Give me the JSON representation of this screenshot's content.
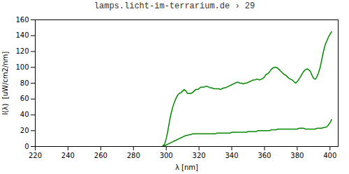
{
  "chart_data": {
    "type": "line",
    "title": "lamps.licht-im-terrarium.de › 29",
    "xlabel": "λ [nm]",
    "ylabel": "I(λ)  [uW/cm2/nm]",
    "xlim": [
      220,
      405
    ],
    "ylim": [
      0,
      160
    ],
    "xticks": [
      220,
      240,
      260,
      280,
      300,
      320,
      340,
      360,
      380,
      400
    ],
    "yticks": [
      0,
      20,
      40,
      60,
      80,
      100,
      120,
      140,
      160
    ],
    "grid": false,
    "x": [
      298,
      299,
      300,
      301,
      302,
      303,
      304,
      305,
      306,
      307,
      308,
      309,
      310,
      311,
      312,
      313,
      314,
      315,
      316,
      317,
      318,
      319,
      320,
      321,
      322,
      323,
      324,
      325,
      326,
      327,
      328,
      329,
      330,
      331,
      332,
      333,
      334,
      335,
      336,
      337,
      338,
      339,
      340,
      341,
      342,
      343,
      344,
      345,
      346,
      347,
      348,
      349,
      350,
      351,
      352,
      353,
      354,
      355,
      356,
      357,
      358,
      359,
      360,
      361,
      362,
      363,
      364,
      365,
      366,
      367,
      368,
      369,
      370,
      371,
      372,
      373,
      374,
      375,
      376,
      377,
      378,
      379,
      380,
      381,
      382,
      383,
      384,
      385,
      386,
      387,
      388,
      389,
      390,
      391,
      392,
      393,
      394,
      395,
      396,
      397,
      398,
      399,
      400,
      401
    ],
    "series": [
      {
        "color": "#008800",
        "values": [
          1,
          3,
          10,
          20,
          32,
          42,
          50,
          56,
          61,
          65,
          67,
          68,
          70,
          72,
          70,
          67,
          67,
          67,
          68,
          70,
          72,
          72,
          73,
          75,
          75,
          75,
          76,
          76,
          75,
          74,
          74,
          73,
          73,
          73,
          73,
          72,
          73,
          74,
          74,
          75,
          76,
          77,
          78,
          79,
          80,
          81,
          81,
          80,
          80,
          79,
          80,
          80,
          81,
          82,
          83,
          84,
          84,
          85,
          85,
          84,
          85,
          86,
          88,
          91,
          92,
          94,
          97,
          99,
          100,
          100,
          99,
          97,
          95,
          93,
          91,
          90,
          88,
          86,
          85,
          84,
          82,
          80,
          82,
          85,
          88,
          92,
          95,
          97,
          98,
          97,
          95,
          90,
          86,
          85,
          88,
          93,
          100,
          110,
          120,
          128,
          133,
          138,
          142,
          145
        ]
      },
      {
        "color": "#008800",
        "values": [
          1,
          1,
          2,
          3,
          4,
          5,
          6,
          7,
          8,
          9,
          10,
          11,
          12,
          13,
          14,
          14,
          15,
          15,
          16,
          16,
          16,
          16,
          16,
          16,
          16,
          16,
          16,
          16,
          16,
          16,
          16,
          16,
          16,
          17,
          17,
          17,
          17,
          17,
          17,
          17,
          17,
          17,
          18,
          18,
          18,
          18,
          18,
          18,
          18,
          18,
          18,
          18,
          19,
          19,
          19,
          19,
          19,
          19,
          20,
          20,
          20,
          20,
          20,
          20,
          20,
          20,
          21,
          21,
          21,
          21,
          22,
          22,
          22,
          22,
          22,
          22,
          22,
          22,
          22,
          22,
          22,
          22,
          22,
          23,
          23,
          23,
          23,
          22,
          22,
          22,
          22,
          22,
          22,
          22,
          23,
          23,
          23,
          23,
          24,
          24,
          25,
          27,
          30,
          34
        ]
      }
    ]
  }
}
